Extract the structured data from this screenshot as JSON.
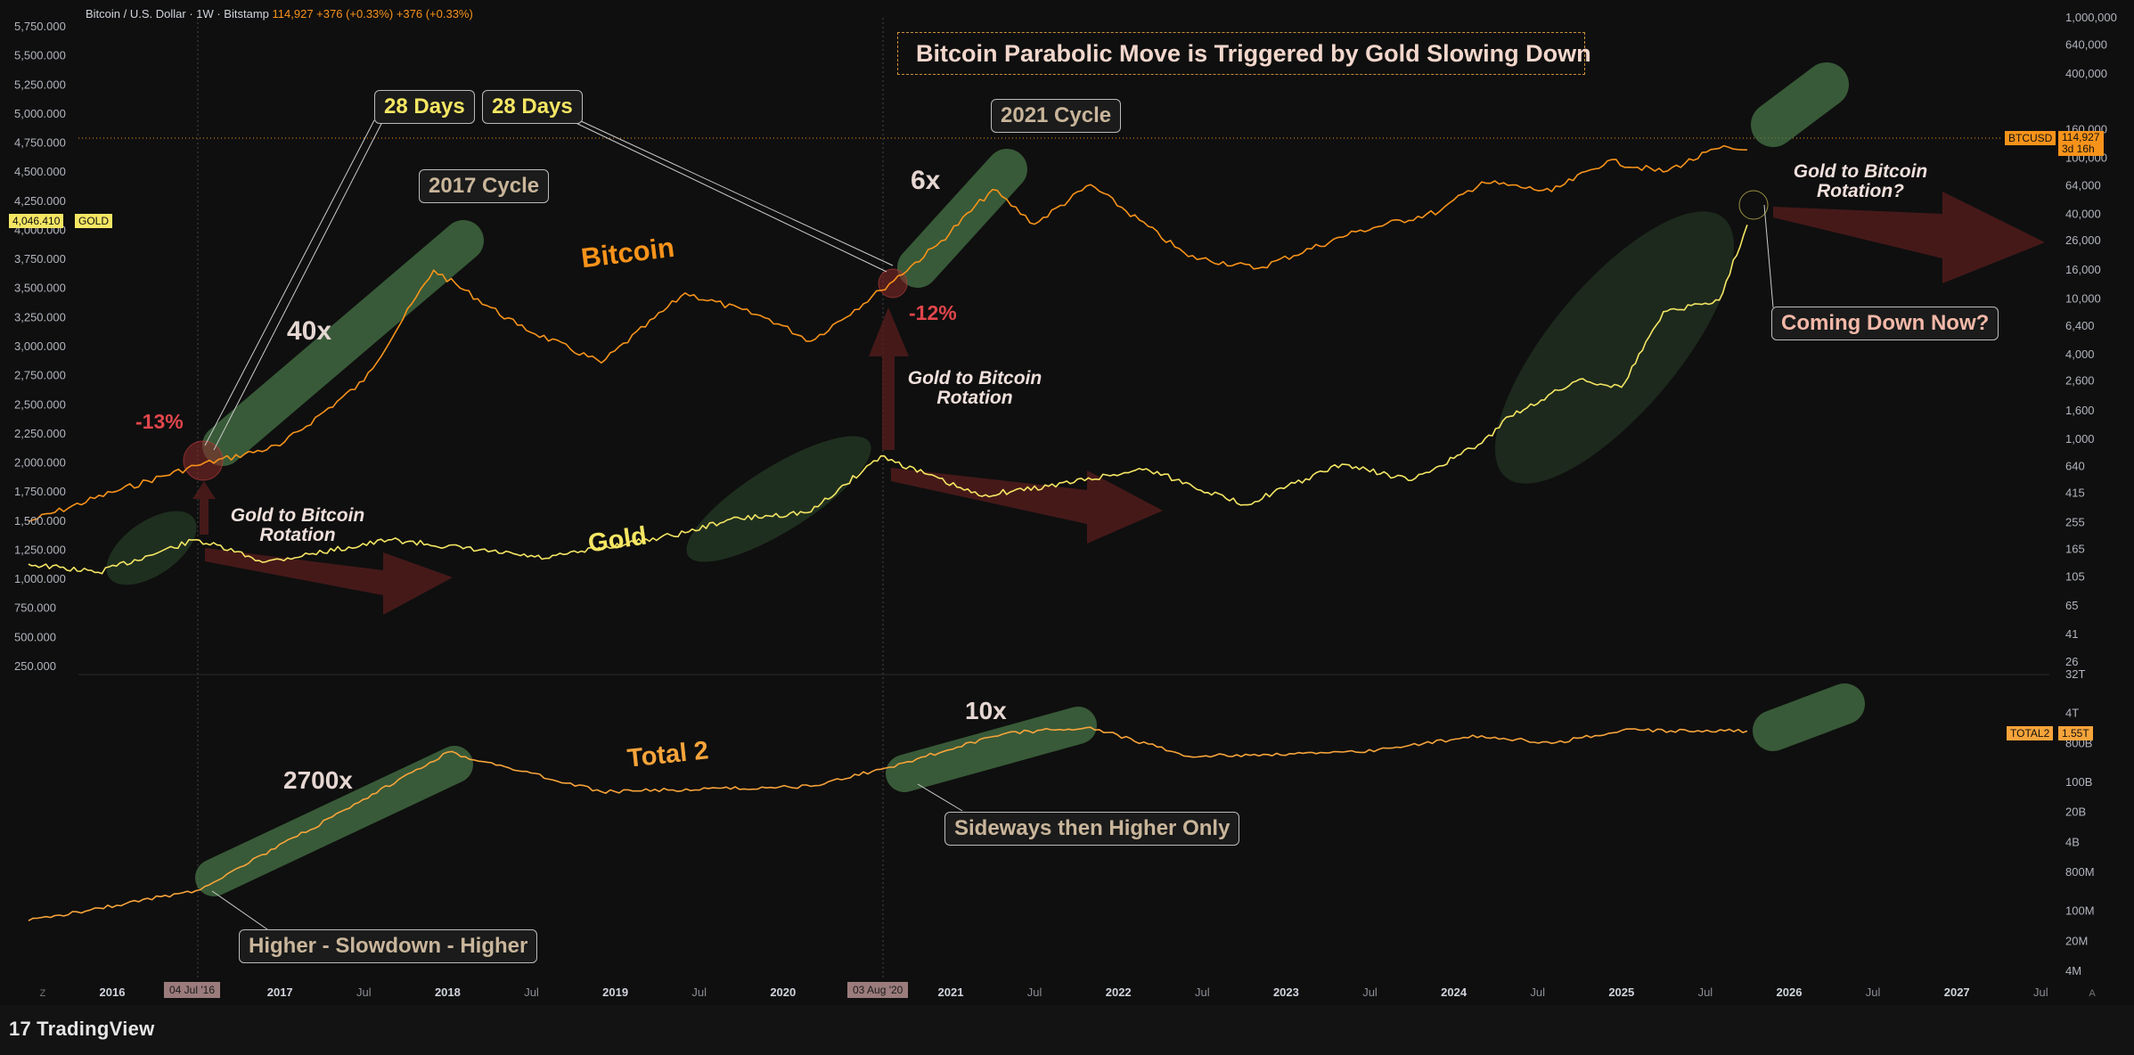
{
  "header": {
    "symbol": "Bitcoin / U.S. Dollar · 1W · Bitstamp",
    "price": "114,927",
    "change1": "+376 (+0.33%)",
    "change2": "+376 (+0.33%)"
  },
  "badges": {
    "gold_price": "4,046.410",
    "gold_label": "GOLD",
    "btc_label": "BTCUSD",
    "btc_price": "114,927",
    "btc_countdown": "3d 16h",
    "total2_label": "TOTAL2",
    "total2_price": "1.55T"
  },
  "annotations": {
    "headline": "Bitcoin Parabolic Move is Triggered by Gold Slowing Down",
    "days1": "28 Days",
    "days2": "28 Days",
    "cycle2017": "2017 Cycle",
    "cycle2021": "2021 Cycle",
    "bitcoin_label": "Bitcoin",
    "gold_label": "Gold",
    "total2_label": "Total 2",
    "mult_40x": "40x",
    "mult_6x": "6x",
    "mult_2700x": "2700x",
    "mult_10x": "10x",
    "pct_13": "-13%",
    "pct_12": "-12%",
    "rot1_l1": "Gold to Bitcoin",
    "rot1_l2": "Rotation",
    "rot2_l1": "Gold to Bitcoin",
    "rot2_l2": "Rotation",
    "rot3_l1": "Gold to Bitcoin",
    "rot3_l2": "Rotation?",
    "coming_down": "Coming Down Now?",
    "sideways": "Sideways then Higher Only",
    "higher_slowdown": "Higher - Slowdown - Higher"
  },
  "x_axis": {
    "labels": [
      "2016",
      "2017",
      "Jul",
      "2018",
      "Jul",
      "2019",
      "Jul",
      "2020",
      "2021",
      "Jul",
      "2022",
      "Jul",
      "2023",
      "Jul",
      "2024",
      "Jul",
      "2025",
      "Jul",
      "2026",
      "Jul",
      "2027",
      "Jul"
    ],
    "marker1": "04 Jul '16",
    "marker2": "03 Aug '20"
  },
  "footer": {
    "brand": "TradingView"
  },
  "colors": {
    "bitcoin": "#f7931a",
    "gold": "#f5e663",
    "total2": "#f7a43a",
    "bg": "#0f0f0f",
    "ellipse": "#3a5a3a"
  },
  "chart_data": [
    {
      "type": "line",
      "name": "Bitcoin / U.S. Dollar · 1W · Bitstamp",
      "y_scale": "log",
      "y_ticks_right": [
        "1,000,000",
        "640,000",
        "400,000",
        "160,000",
        "100,000",
        "64,000",
        "40,000",
        "26,000",
        "16,000",
        "10,000",
        "6,400",
        "4,000",
        "2,600",
        "1,600",
        "1,000",
        "640",
        "415",
        "255",
        "165",
        "105",
        "65",
        "41",
        "26"
      ],
      "series": [
        {
          "name": "BTCUSD",
          "x": [
            "2015-07",
            "2016-01",
            "2016-07",
            "2017-01",
            "2017-07",
            "2017-12",
            "2018-06",
            "2018-12",
            "2019-06",
            "2019-12",
            "2020-03",
            "2020-08",
            "2020-12",
            "2021-04",
            "2021-07",
            "2021-11",
            "2022-06",
            "2022-11",
            "2023-06",
            "2023-12",
            "2024-03",
            "2024-08",
            "2024-12",
            "2025-04",
            "2025-08",
            "2025-10"
          ],
          "y": [
            260,
            420,
            650,
            900,
            2600,
            16000,
            6500,
            3500,
            11000,
            7200,
            5000,
            11500,
            24000,
            60000,
            34000,
            65000,
            20000,
            16500,
            30000,
            42000,
            68000,
            58000,
            96000,
            80000,
            118000,
            114927
          ]
        }
      ]
    },
    {
      "type": "line",
      "name": "GOLD",
      "y_scale": "linear",
      "y_ticks_left": [
        "5,750.000",
        "5,500.000",
        "5,250.000",
        "5,000.000",
        "4,750.000",
        "4,500.000",
        "4,250.000",
        "4,000.000",
        "3,750.000",
        "3,500.000",
        "3,250.000",
        "3,000.000",
        "2,750.000",
        "2,500.000",
        "2,250.000",
        "2,000.000",
        "1,750.000",
        "1,500.000",
        "1,250.000",
        "1,000.000",
        "750.000",
        "500.000",
        "250.000"
      ],
      "series": [
        {
          "name": "GOLD",
          "x": [
            "2015-07",
            "2015-12",
            "2016-07",
            "2016-12",
            "2017-09",
            "2018-08",
            "2019-06",
            "2019-09",
            "2020-03",
            "2020-08",
            "2021-03",
            "2021-08",
            "2022-03",
            "2022-10",
            "2023-05",
            "2023-10",
            "2024-03",
            "2024-05",
            "2024-10",
            "2025-01",
            "2025-04",
            "2025-08",
            "2025-10"
          ],
          "y": [
            1130,
            1060,
            1340,
            1150,
            1340,
            1180,
            1400,
            1510,
            1580,
            2060,
            1720,
            1800,
            1950,
            1640,
            1990,
            1850,
            2170,
            2400,
            2720,
            2650,
            3300,
            3400,
            4046
          ]
        }
      ]
    },
    {
      "type": "line",
      "name": "TOTAL2",
      "y_scale": "log",
      "y_ticks_right": [
        "32T",
        "4T",
        "800B",
        "100B",
        "20B",
        "4B",
        "800M",
        "100M",
        "20M",
        "4M"
      ],
      "series": [
        {
          "name": "TOTAL2",
          "x": [
            "2015-07",
            "2016-07",
            "2017-06",
            "2018-01",
            "2018-12",
            "2020-03",
            "2020-08",
            "2021-05",
            "2021-11",
            "2022-06",
            "2023-06",
            "2024-03",
            "2024-08",
            "2025-01",
            "2025-10"
          ],
          "y": [
            0.06,
            0.3,
            25,
            500,
            60,
            80,
            200,
            1400,
            1900,
            400,
            500,
            1200,
            800,
            1600,
            1550
          ]
        }
      ]
    }
  ]
}
